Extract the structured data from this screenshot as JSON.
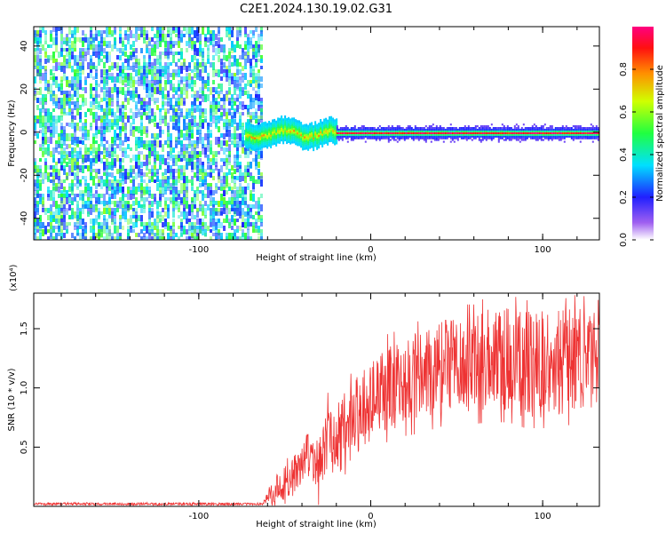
{
  "title": "C2E1.2024.130.19.02.G31",
  "chart_data": [
    {
      "type": "heatmap",
      "xlabel": "Height of straight line (km)",
      "ylabel": "Frequency (Hz)",
      "xlim": [
        -196,
        133
      ],
      "ylim": [
        -50,
        49
      ],
      "x_ticks": [
        -100,
        0,
        100
      ],
      "y_ticks": [
        -40,
        -20,
        0,
        20,
        40
      ],
      "grid": false,
      "colorbar": {
        "label": "Normalized spectral amplitude",
        "range": [
          0.0,
          1.0
        ],
        "ticks": [
          "0.0",
          "0.2",
          "0.4",
          "0.6",
          "0.8"
        ]
      },
      "regions": [
        {
          "x_from": -196,
          "x_to": -63,
          "pattern": "broadband noise",
          "amplitude": [
            0.2,
            0.6
          ]
        },
        {
          "x_from": -73,
          "x_to": -20,
          "pattern": "narrow band near 0 Hz",
          "amplitude": [
            0.3,
            0.8
          ]
        },
        {
          "x_from": -20,
          "x_to": 133,
          "pattern": "line at 0 Hz",
          "amplitude": [
            0.85,
            1.0
          ]
        }
      ]
    },
    {
      "type": "line",
      "xlabel": "Height of straight line (km)",
      "ylabel": "SNR (10 * v/v)",
      "y_multiplier": "(x10⁴)",
      "xlim": [
        -196,
        133
      ],
      "ylim": [
        0,
        1.8
      ],
      "x_ticks": [
        -100,
        0,
        100
      ],
      "y_ticks": [
        "0.5",
        "1.0",
        "1.5"
      ],
      "grid": false,
      "series": [
        {
          "color": "#ee3333",
          "x": [
            -196,
            -63,
            -55,
            -50,
            -45,
            -40,
            -35,
            -30,
            -25,
            -20,
            -15,
            -10,
            -5,
            0,
            5,
            10,
            20,
            30,
            40,
            50,
            60,
            70,
            80,
            90,
            100,
            110,
            120,
            133
          ],
          "y": [
            0.02,
            0.02,
            0.15,
            0.2,
            0.25,
            0.35,
            0.45,
            0.3,
            0.6,
            0.55,
            0.65,
            0.75,
            0.8,
            0.9,
            0.95,
            1.0,
            1.05,
            1.1,
            1.15,
            1.2,
            1.2,
            1.25,
            1.25,
            1.2,
            1.2,
            1.2,
            1.25,
            1.2
          ],
          "spread": [
            0.01,
            0.01,
            0.12,
            0.15,
            0.18,
            0.2,
            0.22,
            0.25,
            0.3,
            0.3,
            0.32,
            0.34,
            0.35,
            0.35,
            0.36,
            0.38,
            0.38,
            0.4,
            0.4,
            0.42,
            0.42,
            0.45,
            0.45,
            0.45,
            0.45,
            0.45,
            0.45,
            0.45
          ]
        }
      ]
    }
  ]
}
